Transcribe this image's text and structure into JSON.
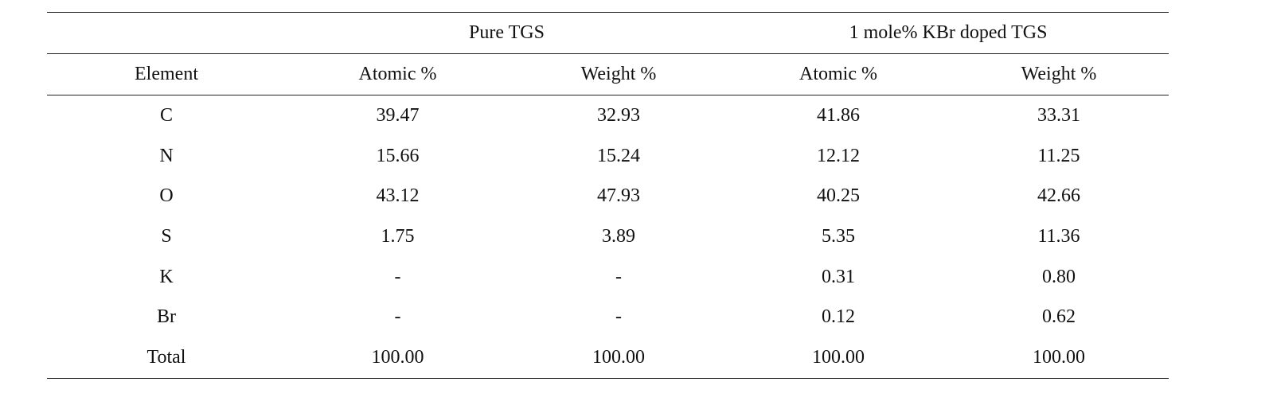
{
  "table": {
    "groups": [
      "",
      "Pure TGS",
      "1 mole% KBr doped TGS"
    ],
    "columns": [
      "Element",
      "Atomic %",
      "Weight %",
      "Atomic %",
      "Weight %"
    ],
    "rows": [
      [
        "C",
        "39.47",
        "32.93",
        "41.86",
        "33.31"
      ],
      [
        "N",
        "15.66",
        "15.24",
        "12.12",
        "11.25"
      ],
      [
        "O",
        "43.12",
        "47.93",
        "40.25",
        "42.66"
      ],
      [
        "S",
        "1.75",
        "3.89",
        "5.35",
        "11.36"
      ],
      [
        "K",
        "-",
        "-",
        "0.31",
        "0.80"
      ],
      [
        "Br",
        "-",
        "-",
        "0.12",
        "0.62"
      ],
      [
        "Total",
        "100.00",
        "100.00",
        "100.00",
        "100.00"
      ]
    ]
  }
}
